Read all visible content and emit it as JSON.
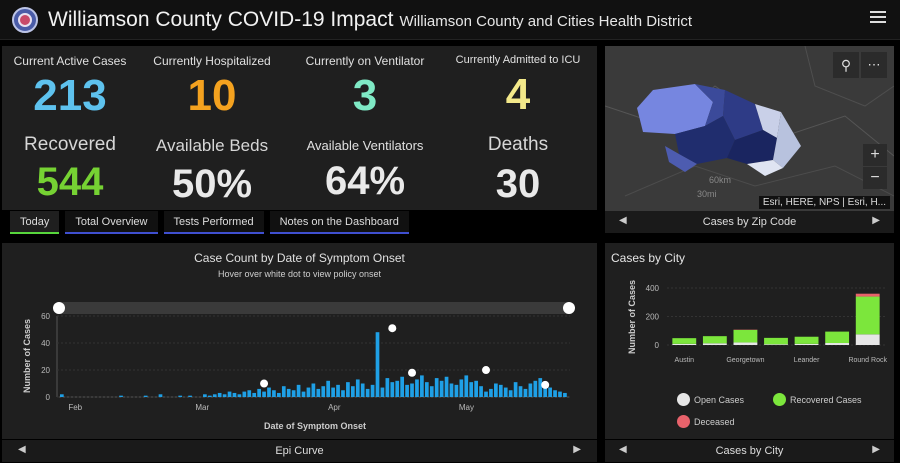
{
  "header": {
    "title": "Williamson County COVID-19 Impact",
    "subtitle": "Williamson County and Cities Health District"
  },
  "stats": [
    {
      "label": "Current Active Cases",
      "value": "213",
      "color": "#5ec2ee"
    },
    {
      "label": "Currently Hospitalized",
      "value": "10",
      "color": "#f4a21f"
    },
    {
      "label": "Currently on Ventilator",
      "value": "3",
      "color": "#7fe9c5"
    },
    {
      "label": "Currently Admitted to ICU",
      "value": "4",
      "color": "#f3e98a"
    },
    {
      "label": "Recovered",
      "value": "544",
      "color": "#76d233"
    },
    {
      "label": "Available Beds",
      "value": "50%",
      "color": "#e9e9e9"
    },
    {
      "label": "Available Ventilators",
      "value": "64%",
      "color": "#e9e9e9"
    },
    {
      "label": "Deaths",
      "value": "30",
      "color": "#e9e9e9"
    }
  ],
  "tabs": [
    "Today",
    "Total Overview",
    "Tests Performed",
    "Notes on the Dashboard"
  ],
  "map": {
    "attribution": "Esri, HERE, NPS | Esri, H...",
    "scale_km": "60km",
    "scale_mi": "30mi",
    "footer": "Cases by Zip Code"
  },
  "epi": {
    "footer": "Epi Curve"
  },
  "city": {
    "footer": "Cases by City"
  },
  "chart_data": [
    {
      "type": "bar",
      "title": "Case Count by Date of Symptom Onset",
      "subtitle": "Hover over white dot to view policy onset",
      "xlabel": "Date of Symptom Onset",
      "ylabel": "Number of Cases",
      "ylim": [
        0,
        60
      ],
      "yticks": [
        0,
        20,
        40,
        60
      ],
      "xticks": [
        "Feb",
        "Mar",
        "Apr",
        "May"
      ],
      "color": "#1fa0e6",
      "values": [
        2,
        0,
        0,
        0,
        0,
        0,
        0,
        0,
        0,
        0,
        0,
        0,
        1,
        0,
        0,
        0,
        0,
        1,
        0,
        0,
        2,
        0,
        0,
        0,
        1,
        0,
        1,
        0,
        0,
        2,
        1,
        2,
        3,
        2,
        4,
        3,
        2,
        4,
        5,
        3,
        6,
        4,
        7,
        5,
        3,
        8,
        6,
        5,
        9,
        4,
        7,
        10,
        6,
        8,
        12,
        7,
        9,
        5,
        11,
        8,
        13,
        10,
        6,
        9,
        48,
        7,
        14,
        11,
        12,
        15,
        9,
        10,
        13,
        16,
        11,
        8,
        14,
        12,
        15,
        10,
        9,
        13,
        16,
        11,
        12,
        8,
        4,
        6,
        10,
        9,
        7,
        5,
        11,
        8,
        6,
        10,
        12,
        14,
        9,
        7,
        5,
        4,
        3
      ],
      "policy_dots": [
        {
          "index": 41,
          "value": 7
        },
        {
          "index": 67,
          "value": 48
        },
        {
          "index": 71,
          "value": 15
        },
        {
          "index": 86,
          "value": 17
        },
        {
          "index": 98,
          "value": 6
        }
      ]
    },
    {
      "type": "bar",
      "title": "Cases by City",
      "ylabel": "Number of Cases",
      "ylim": [
        0,
        400
      ],
      "yticks": [
        0,
        200,
        400
      ],
      "categories": [
        "Austin",
        "",
        "Georgetown",
        "",
        "Leander",
        "",
        "Round Rock"
      ],
      "series": [
        {
          "name": "Open Cases",
          "color": "#e6e6e6",
          "values": [
            8,
            12,
            18,
            5,
            8,
            14,
            75
          ]
        },
        {
          "name": "Recovered Cases",
          "color": "#7ce63c",
          "values": [
            40,
            50,
            88,
            45,
            50,
            80,
            265
          ]
        },
        {
          "name": "Deceased",
          "color": "#e8626b",
          "values": [
            0,
            0,
            2,
            0,
            0,
            0,
            20
          ]
        }
      ]
    }
  ]
}
